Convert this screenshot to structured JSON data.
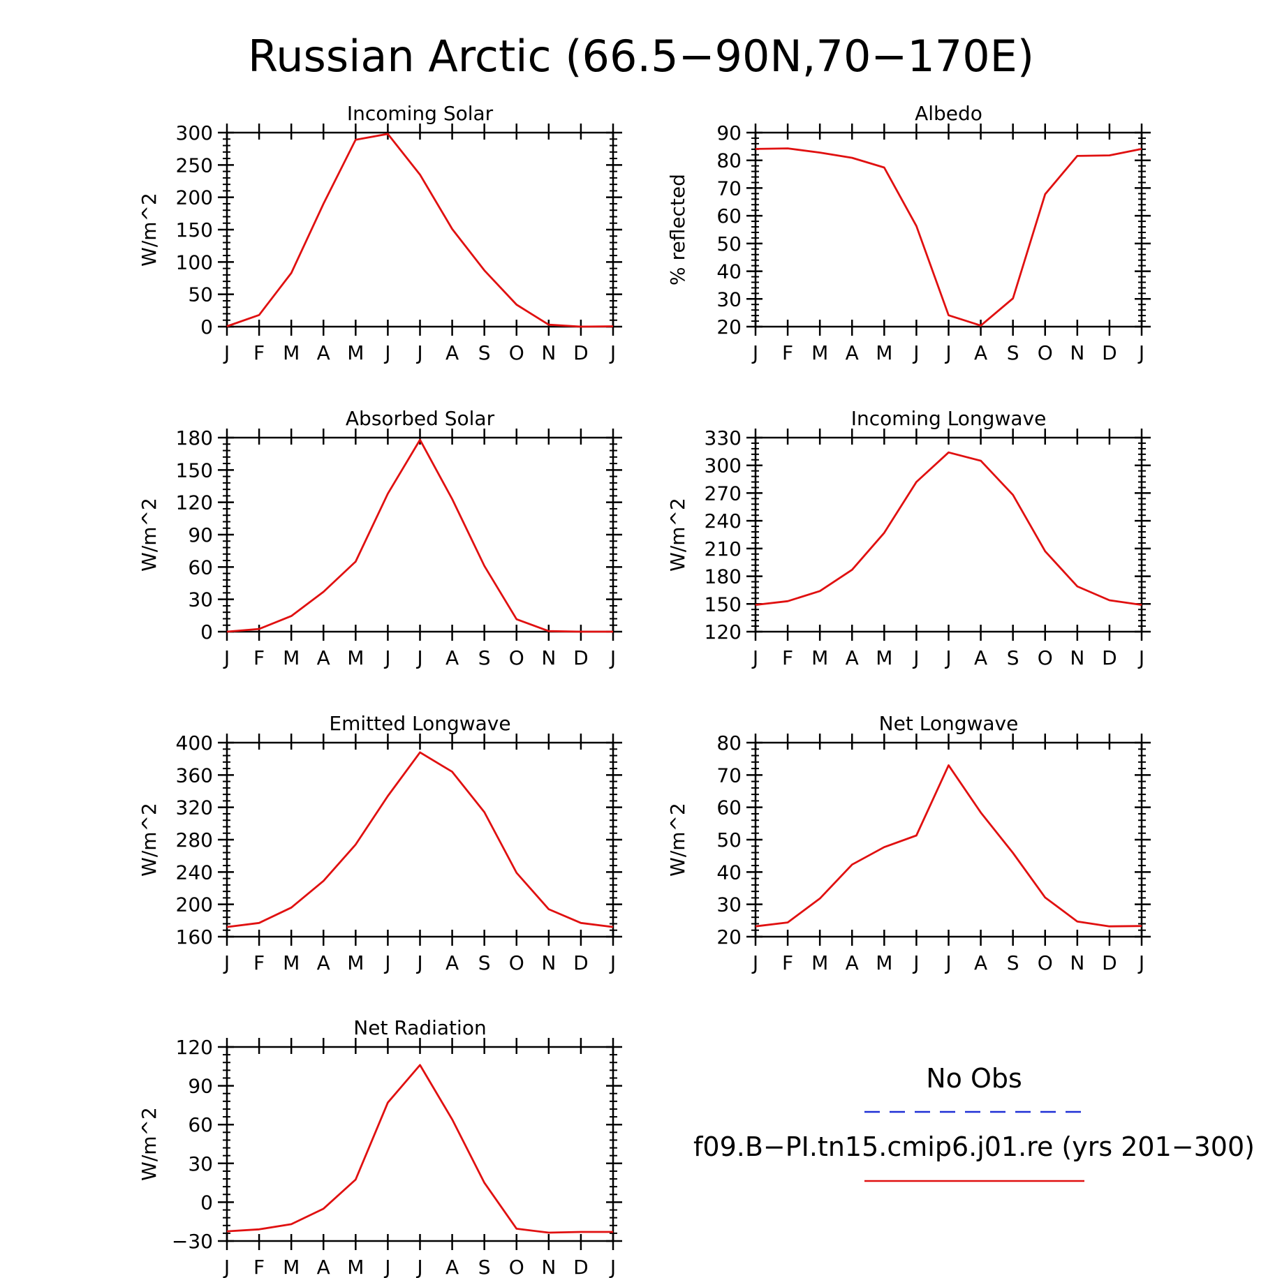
{
  "page": {
    "title": "Russian Arctic (66.5−90N,70−170E)"
  },
  "legend": {
    "obs_label": "No Obs",
    "obs_color": "#1f2fd6",
    "obs_style": "dashed",
    "model_label": "f09.B−PI.tn15.cmip6.j01.re (yrs 201−300)",
    "model_color": "#e01010",
    "model_style": "solid"
  },
  "chart_data": [
    {
      "type": "line",
      "title": "Incoming Solar",
      "ylabel": "W/m^2",
      "x": [
        "J",
        "F",
        "M",
        "A",
        "M",
        "J",
        "J",
        "A",
        "S",
        "O",
        "N",
        "D",
        "J"
      ],
      "ylim": [
        0,
        300
      ],
      "yticks": [
        0,
        50,
        100,
        150,
        200,
        250,
        300
      ],
      "series": [
        {
          "values": [
            0.5,
            18,
            83,
            190,
            289,
            298,
            235,
            151,
            87,
            34,
            3,
            0,
            0.5
          ],
          "color": "#e01010"
        }
      ]
    },
    {
      "type": "line",
      "title": "Albedo",
      "ylabel": "% reflected",
      "x": [
        "J",
        "F",
        "M",
        "A",
        "M",
        "J",
        "J",
        "A",
        "S",
        "O",
        "N",
        "D",
        "J"
      ],
      "ylim": [
        20,
        90
      ],
      "yticks": [
        20,
        30,
        40,
        50,
        60,
        70,
        80,
        90
      ],
      "series": [
        {
          "values": [
            84.1,
            84.3,
            82.8,
            80.9,
            77.4,
            56.3,
            24.1,
            20.4,
            30.2,
            67.8,
            81.6,
            81.8,
            84.1
          ],
          "color": "#e01010"
        }
      ]
    },
    {
      "type": "line",
      "title": "Absorbed Solar",
      "ylabel": "W/m^2",
      "x": [
        "J",
        "F",
        "M",
        "A",
        "M",
        "J",
        "J",
        "A",
        "S",
        "O",
        "N",
        "D",
        "J"
      ],
      "ylim": [
        0,
        180
      ],
      "yticks": [
        0,
        30,
        60,
        90,
        120,
        150,
        180
      ],
      "series": [
        {
          "values": [
            0,
            2.5,
            14.5,
            37,
            65,
            128,
            178,
            123,
            61,
            11.5,
            0.5,
            0,
            0
          ],
          "color": "#e01010"
        }
      ]
    },
    {
      "type": "line",
      "title": "Incoming Longwave",
      "ylabel": "W/m^2",
      "x": [
        "J",
        "F",
        "M",
        "A",
        "M",
        "J",
        "J",
        "A",
        "S",
        "O",
        "N",
        "D",
        "J"
      ],
      "ylim": [
        120,
        330
      ],
      "yticks": [
        120,
        150,
        180,
        210,
        240,
        270,
        300,
        330
      ],
      "series": [
        {
          "values": [
            149,
            153,
            164,
            187,
            227,
            282,
            314,
            305,
            268,
            207,
            169,
            154,
            149
          ],
          "color": "#e01010"
        }
      ]
    },
    {
      "type": "line",
      "title": "Emitted Longwave",
      "ylabel": "W/m^2",
      "x": [
        "J",
        "F",
        "M",
        "A",
        "M",
        "J",
        "J",
        "A",
        "S",
        "O",
        "N",
        "D",
        "J"
      ],
      "ylim": [
        160,
        400
      ],
      "yticks": [
        160,
        200,
        240,
        280,
        320,
        360,
        400
      ],
      "series": [
        {
          "values": [
            172,
            177,
            196,
            229,
            274,
            334,
            388,
            364,
            314,
            239,
            194,
            177,
            172
          ],
          "color": "#e01010"
        }
      ]
    },
    {
      "type": "line",
      "title": "Net Longwave",
      "ylabel": "W/m^2",
      "x": [
        "J",
        "F",
        "M",
        "A",
        "M",
        "J",
        "J",
        "A",
        "S",
        "O",
        "N",
        "D",
        "J"
      ],
      "ylim": [
        20,
        80
      ],
      "yticks": [
        20,
        30,
        40,
        50,
        60,
        70,
        80
      ],
      "series": [
        {
          "values": [
            23.2,
            24.4,
            31.8,
            42.3,
            47.7,
            51.3,
            73.0,
            58.4,
            45.9,
            32.1,
            24.7,
            23.2,
            23.3
          ],
          "color": "#e01010"
        }
      ]
    },
    {
      "type": "line",
      "title": "Net Radiation",
      "ylabel": "W/m^2",
      "x": [
        "J",
        "F",
        "M",
        "A",
        "M",
        "J",
        "J",
        "A",
        "S",
        "O",
        "N",
        "D",
        "J"
      ],
      "ylim": [
        -30,
        120
      ],
      "yticks": [
        -30,
        0,
        30,
        60,
        90,
        120
      ],
      "series": [
        {
          "values": [
            -22.5,
            -21,
            -17,
            -5,
            17.5,
            77,
            106,
            64,
            15,
            -20.5,
            -23.5,
            -23,
            -23
          ],
          "color": "#e01010"
        }
      ]
    }
  ]
}
